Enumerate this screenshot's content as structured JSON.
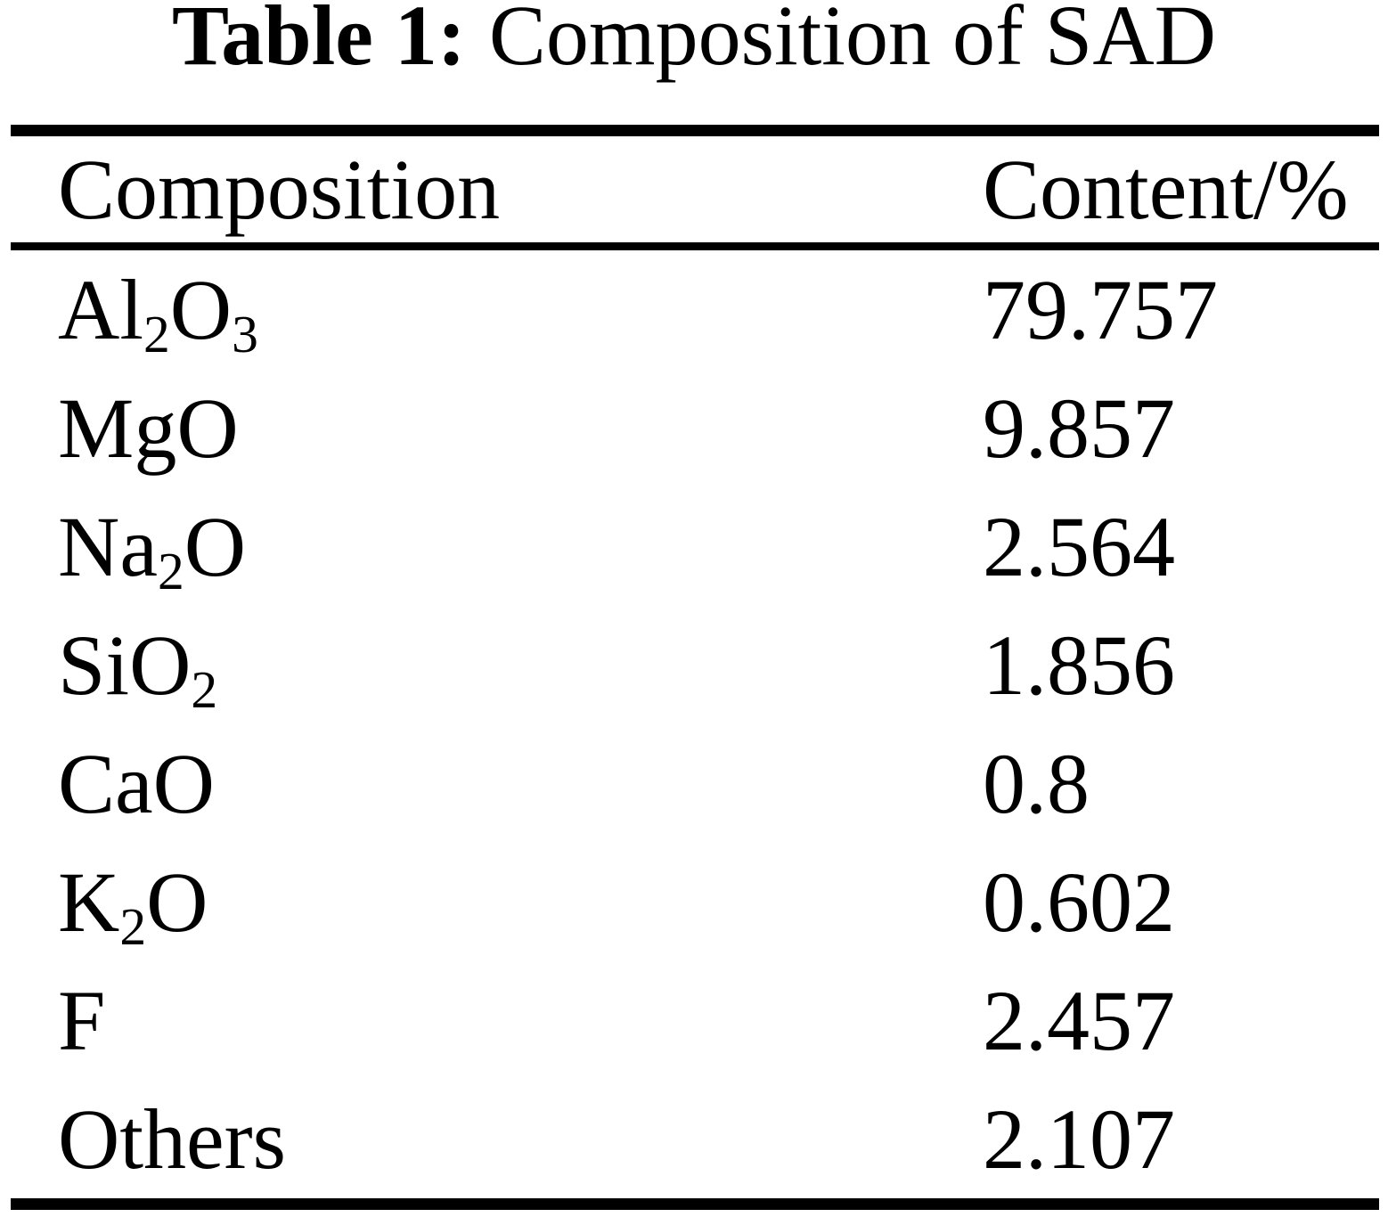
{
  "caption": {
    "label": "Table 1:",
    "title": "Composition of SAD"
  },
  "table": {
    "columns": [
      "Composition",
      "Content/%"
    ],
    "rows": [
      {
        "composition": "Al_2O_3",
        "content": "79.757"
      },
      {
        "composition": "MgO",
        "content": "9.857"
      },
      {
        "composition": "Na_2O",
        "content": "2.564"
      },
      {
        "composition": "SiO_2",
        "content": "1.856"
      },
      {
        "composition": "CaO",
        "content": "0.8"
      },
      {
        "composition": "K_2O",
        "content": "0.602"
      },
      {
        "composition": "F",
        "content": "2.457"
      },
      {
        "composition": "Others",
        "content": "2.107"
      }
    ]
  },
  "colors": {
    "text": "#000000",
    "background": "#ffffff",
    "rule": "#000000"
  }
}
